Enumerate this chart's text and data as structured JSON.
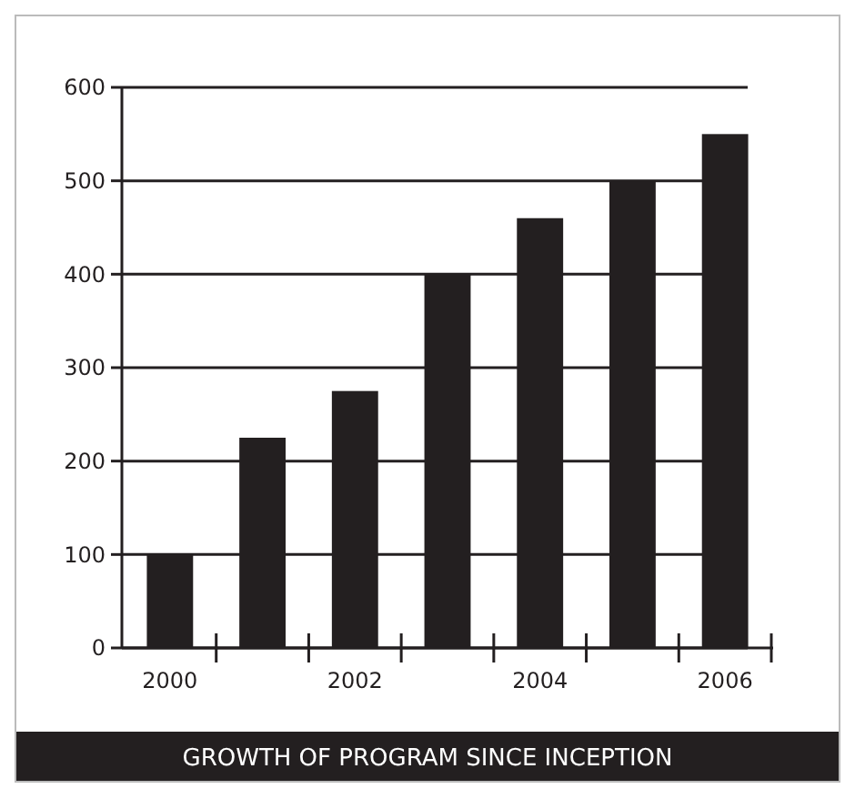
{
  "chart_data": {
    "type": "bar",
    "title": "GROWTH OF PROGRAM SINCE INCEPTION",
    "categories": [
      "2000",
      null,
      "2002",
      null,
      "2004",
      null,
      "2006"
    ],
    "values": [
      100,
      225,
      275,
      400,
      460,
      500,
      550
    ],
    "color": "#231f20",
    "ylim": [
      0,
      600
    ],
    "yticks": [
      0,
      100,
      200,
      300,
      400,
      500,
      600
    ],
    "grid": "y"
  }
}
